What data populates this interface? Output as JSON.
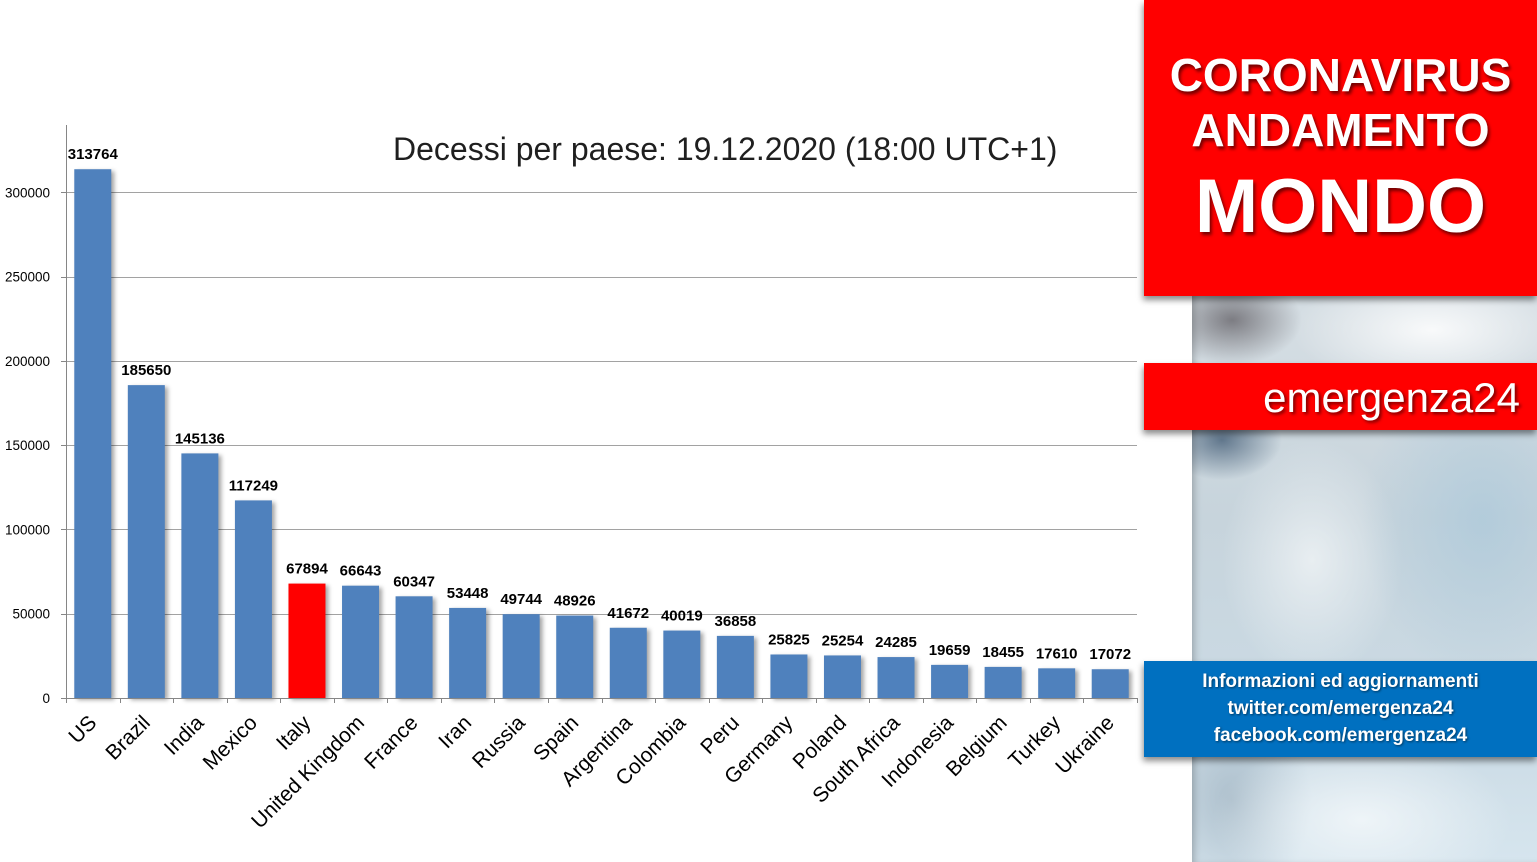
{
  "chart_data": {
    "type": "bar",
    "title": "Decessi per paese: 19.12.2020 (18:00 UTC+1)",
    "xlabel": "",
    "ylabel": "",
    "categories": [
      "US",
      "Brazil",
      "India",
      "Mexico",
      "Italy",
      "United Kingdom",
      "France",
      "Iran",
      "Russia",
      "Spain",
      "Argentina",
      "Colombia",
      "Peru",
      "Germany",
      "Poland",
      "South Africa",
      "Indonesia",
      "Belgium",
      "Turkey",
      "Ukraine"
    ],
    "values": [
      313764,
      185650,
      145136,
      117249,
      67894,
      66643,
      60347,
      53448,
      49744,
      48926,
      41672,
      40019,
      36858,
      25825,
      25254,
      24285,
      19659,
      18455,
      17610,
      17072
    ],
    "ylim": [
      0,
      340000
    ],
    "yticks": [
      0,
      50000,
      100000,
      150000,
      200000,
      250000,
      300000
    ],
    "grid": true,
    "data_labels": true,
    "bar_color": "#4F81BD",
    "highlight": {
      "category": "Italy",
      "color": "#FF0000"
    }
  },
  "banner": {
    "lines": [
      "CORONAVIRUS",
      "ANDAMENTO",
      "MONDO"
    ],
    "background": "#FF0000",
    "text_color": "#FFFFFF"
  },
  "brand": {
    "label": "emergenza24",
    "background": "#FF0000"
  },
  "info": {
    "lines": [
      "Informazioni ed aggiornamenti",
      "twitter.com/emergenza24",
      "facebook.com/emergenza24"
    ],
    "background": "#0070C0"
  }
}
